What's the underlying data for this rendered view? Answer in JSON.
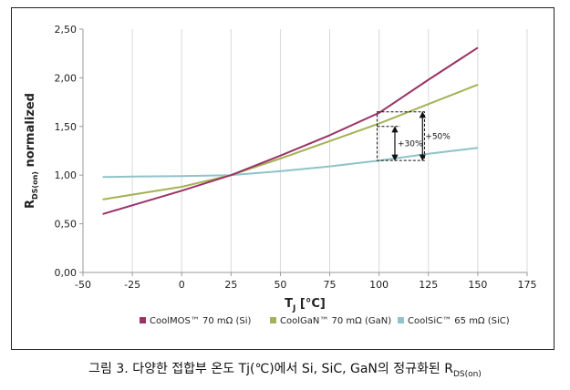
{
  "chart_data": {
    "type": "line",
    "xlabel": "T",
    "xlabel_sub": "J",
    "xlabel_unit": " [°C]",
    "ylabel": "R",
    "ylabel_sub": "DS(on)",
    "ylabel_tail": " normalized",
    "xlim": [
      -50,
      175
    ],
    "ylim": [
      0,
      2.5
    ],
    "xticks": [
      -50,
      -25,
      0,
      25,
      50,
      75,
      100,
      125,
      150,
      175
    ],
    "xtick_labels": [
      "-50",
      "-25",
      "0",
      "25",
      "50",
      "75",
      "100",
      "125",
      "150",
      "175"
    ],
    "yticks": [
      0,
      0.5,
      1.0,
      1.5,
      2.0,
      2.5
    ],
    "ytick_labels": [
      "0,00",
      "0,50",
      "1,00",
      "1,50",
      "2,00",
      "2,50"
    ],
    "grid": "vertical",
    "legend_position": "bottom",
    "series": [
      {
        "name": "CoolMOS™ 70 mΩ (Si)",
        "color": "#993366",
        "x": [
          -40,
          -25,
          0,
          25,
          50,
          75,
          100,
          125,
          150
        ],
        "values": [
          0.6,
          0.69,
          0.84,
          1.0,
          1.2,
          1.41,
          1.64,
          1.98,
          2.31
        ]
      },
      {
        "name": "CoolGaN™ 70 mΩ (GaN)",
        "color": "#a5b156",
        "x": [
          -40,
          -25,
          0,
          25,
          50,
          75,
          100,
          125,
          150
        ],
        "values": [
          0.75,
          0.8,
          0.88,
          1.0,
          1.17,
          1.35,
          1.53,
          1.73,
          1.93
        ]
      },
      {
        "name": "CoolSiC™ 65 mΩ (SiC)",
        "color": "#8ec3c8",
        "x": [
          -40,
          -25,
          0,
          25,
          50,
          75,
          100,
          125,
          150
        ],
        "values": [
          0.98,
          0.985,
          0.99,
          1.0,
          1.04,
          1.09,
          1.15,
          1.22,
          1.28
        ]
      }
    ],
    "annotations": [
      {
        "label": "+30%",
        "x": 108,
        "from": 1.15,
        "to": 1.5
      },
      {
        "label": "+50%",
        "x": 122,
        "from": 1.15,
        "to": 1.65
      }
    ],
    "annotation_box": {
      "x_from": 99,
      "x_to": 123,
      "y_from": 1.15,
      "y_to": 1.65
    }
  },
  "caption": {
    "text": "그림 3. 다양한 접합부 온도 Tj(℃)에서 Si, SiC, GaN의 정규화된 R",
    "sub": "DS(on)"
  }
}
